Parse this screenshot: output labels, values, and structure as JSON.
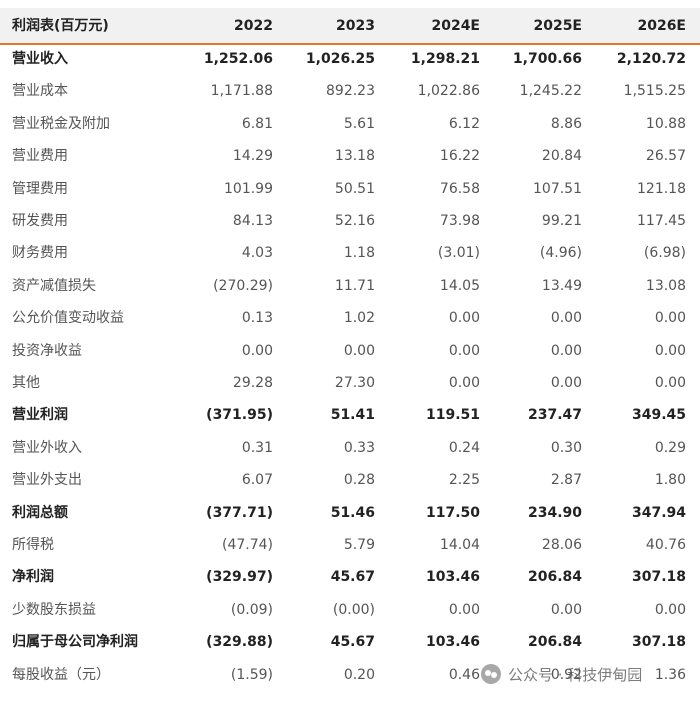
{
  "table": {
    "header": [
      "利润表(百万元)",
      "2022",
      "2023",
      "2024E",
      "2025E",
      "2026E"
    ],
    "rows": [
      {
        "label": "营业收入",
        "values": [
          "1,252.06",
          "1,026.25",
          "1,298.21",
          "1,700.66",
          "2,120.72"
        ],
        "bold": true
      },
      {
        "label": "营业成本",
        "values": [
          "1,171.88",
          "892.23",
          "1,022.86",
          "1,245.22",
          "1,515.25"
        ],
        "bold": false
      },
      {
        "label": "营业税金及附加",
        "values": [
          "6.81",
          "5.61",
          "6.12",
          "8.86",
          "10.88"
        ],
        "bold": false
      },
      {
        "label": "营业费用",
        "values": [
          "14.29",
          "13.18",
          "16.22",
          "20.84",
          "26.57"
        ],
        "bold": false
      },
      {
        "label": "管理费用",
        "values": [
          "101.99",
          "50.51",
          "76.58",
          "107.51",
          "121.18"
        ],
        "bold": false
      },
      {
        "label": "研发费用",
        "values": [
          "84.13",
          "52.16",
          "73.98",
          "99.21",
          "117.45"
        ],
        "bold": false
      },
      {
        "label": "财务费用",
        "values": [
          "4.03",
          "1.18",
          "(3.01)",
          "(4.96)",
          "(6.98)"
        ],
        "bold": false
      },
      {
        "label": "资产减值损失",
        "values": [
          "(270.29)",
          "11.71",
          "14.05",
          "13.49",
          "13.08"
        ],
        "bold": false
      },
      {
        "label": "公允价值变动收益",
        "values": [
          "0.13",
          "1.02",
          "0.00",
          "0.00",
          "0.00"
        ],
        "bold": false
      },
      {
        "label": "投资净收益",
        "values": [
          "0.00",
          "0.00",
          "0.00",
          "0.00",
          "0.00"
        ],
        "bold": false
      },
      {
        "label": "其他",
        "values": [
          "29.28",
          "27.30",
          "0.00",
          "0.00",
          "0.00"
        ],
        "bold": false
      },
      {
        "label": "营业利润",
        "values": [
          "(371.95)",
          "51.41",
          "119.51",
          "237.47",
          "349.45"
        ],
        "bold": true
      },
      {
        "label": "营业外收入",
        "values": [
          "0.31",
          "0.33",
          "0.24",
          "0.30",
          "0.29"
        ],
        "bold": false
      },
      {
        "label": "营业外支出",
        "values": [
          "6.07",
          "0.28",
          "2.25",
          "2.87",
          "1.80"
        ],
        "bold": false
      },
      {
        "label": "利润总额",
        "values": [
          "(377.71)",
          "51.46",
          "117.50",
          "234.90",
          "347.94"
        ],
        "bold": true
      },
      {
        "label": "所得税",
        "values": [
          "(47.74)",
          "5.79",
          "14.04",
          "28.06",
          "40.76"
        ],
        "bold": false
      },
      {
        "label": "净利润",
        "values": [
          "(329.97)",
          "45.67",
          "103.46",
          "206.84",
          "307.18"
        ],
        "bold": true
      },
      {
        "label": "少数股东损益",
        "values": [
          "(0.09)",
          "(0.00)",
          "0.00",
          "0.00",
          "0.00"
        ],
        "bold": false
      },
      {
        "label": "归属于母公司净利润",
        "values": [
          "(329.88)",
          "45.67",
          "103.46",
          "206.84",
          "307.18"
        ],
        "bold": true
      },
      {
        "label": "每股收益（元）",
        "values": [
          "(1.59)",
          "0.20",
          "0.46",
          "0.92",
          "1.36"
        ],
        "bold": false
      }
    ]
  },
  "watermark": "公众号 · 科技伊甸园"
}
